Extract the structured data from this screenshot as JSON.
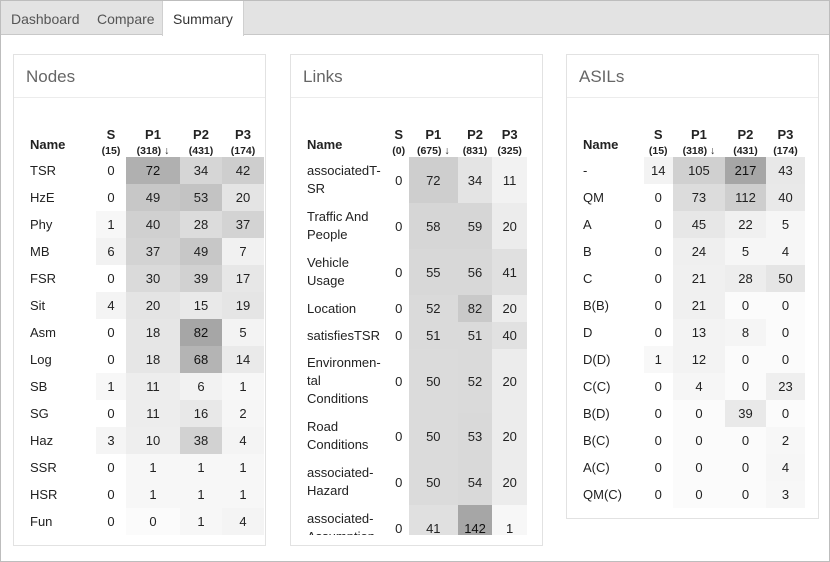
{
  "tabs": [
    {
      "label": "Dashboard",
      "active": false
    },
    {
      "label": "Compare",
      "active": false
    },
    {
      "label": "Summary",
      "active": true
    }
  ],
  "nodes": {
    "title": "Nodes",
    "headers": [
      {
        "h": "Name",
        "s": ""
      },
      {
        "h": "S",
        "s": "(15)"
      },
      {
        "h": "P1",
        "s": "(318) ↓"
      },
      {
        "h": "P2",
        "s": "(431)"
      },
      {
        "h": "P3",
        "s": "(174)"
      }
    ],
    "rows": [
      {
        "name": "TSR",
        "v": [
          0,
          72,
          34,
          42
        ]
      },
      {
        "name": "HzE",
        "v": [
          0,
          49,
          53,
          20
        ]
      },
      {
        "name": "Phy",
        "v": [
          1,
          40,
          28,
          37
        ]
      },
      {
        "name": "MB",
        "v": [
          6,
          37,
          49,
          7
        ]
      },
      {
        "name": "FSR",
        "v": [
          0,
          30,
          39,
          17
        ]
      },
      {
        "name": "Sit",
        "v": [
          4,
          20,
          15,
          19
        ]
      },
      {
        "name": "Asm",
        "v": [
          0,
          18,
          82,
          5
        ]
      },
      {
        "name": "Log",
        "v": [
          0,
          18,
          68,
          14
        ]
      },
      {
        "name": "SB",
        "v": [
          1,
          11,
          6,
          1
        ]
      },
      {
        "name": "SG",
        "v": [
          0,
          11,
          16,
          2
        ]
      },
      {
        "name": "Haz",
        "v": [
          3,
          10,
          38,
          4
        ]
      },
      {
        "name": "SSR",
        "v": [
          0,
          1,
          1,
          1
        ]
      },
      {
        "name": "HSR",
        "v": [
          0,
          1,
          1,
          1
        ]
      },
      {
        "name": "Fun",
        "v": [
          0,
          0,
          1,
          4
        ]
      }
    ]
  },
  "links": {
    "title": "Links",
    "headers": [
      {
        "h": "Name",
        "s": ""
      },
      {
        "h": "S",
        "s": "(0)"
      },
      {
        "h": "P1",
        "s": "(675) ↓"
      },
      {
        "h": "P2",
        "s": "(831)"
      },
      {
        "h": "P3",
        "s": "(325)"
      }
    ],
    "rows": [
      {
        "name": "associatedT-SR",
        "lines": [
          "associatedT-",
          "SR"
        ],
        "v": [
          0,
          72,
          34,
          11
        ]
      },
      {
        "name": "Traffic And People",
        "lines": [
          "Traffic And",
          "People"
        ],
        "v": [
          0,
          58,
          59,
          20
        ]
      },
      {
        "name": "Vehicle Usage",
        "lines": [
          "Vehicle",
          "Usage"
        ],
        "v": [
          0,
          55,
          56,
          41
        ]
      },
      {
        "name": "Location",
        "lines": [
          "Location"
        ],
        "v": [
          0,
          52,
          82,
          20
        ]
      },
      {
        "name": "satisfiesTSR",
        "lines": [
          "satisfiesTSR"
        ],
        "v": [
          0,
          51,
          51,
          40
        ]
      },
      {
        "name": "Environmental Conditions",
        "lines": [
          "Environmen-",
          "tal",
          "Conditions"
        ],
        "v": [
          0,
          50,
          52,
          20
        ]
      },
      {
        "name": "Road Conditions",
        "lines": [
          "Road",
          "Conditions"
        ],
        "v": [
          0,
          50,
          53,
          20
        ]
      },
      {
        "name": "associated-Hazard",
        "lines": [
          "associated-",
          "Hazard"
        ],
        "v": [
          0,
          50,
          54,
          20
        ]
      },
      {
        "name": "associated-Assumption",
        "lines": [
          "associated-",
          "Assumption"
        ],
        "v": [
          0,
          41,
          142,
          1
        ]
      }
    ]
  },
  "asils": {
    "title": "ASILs",
    "headers": [
      {
        "h": "Name",
        "s": ""
      },
      {
        "h": "S",
        "s": "(15)"
      },
      {
        "h": "P1",
        "s": "(318) ↓"
      },
      {
        "h": "P2",
        "s": "(431)"
      },
      {
        "h": "P3",
        "s": "(174)"
      }
    ],
    "rows": [
      {
        "name": "-",
        "v": [
          14,
          105,
          217,
          43
        ]
      },
      {
        "name": "QM",
        "v": [
          0,
          73,
          112,
          40
        ]
      },
      {
        "name": "A",
        "v": [
          0,
          45,
          22,
          5
        ]
      },
      {
        "name": "B",
        "v": [
          0,
          24,
          5,
          4
        ]
      },
      {
        "name": "C",
        "v": [
          0,
          21,
          28,
          50
        ]
      },
      {
        "name": "B(B)",
        "v": [
          0,
          21,
          0,
          0
        ]
      },
      {
        "name": "D",
        "v": [
          0,
          13,
          8,
          0
        ]
      },
      {
        "name": "D(D)",
        "v": [
          1,
          12,
          0,
          0
        ]
      },
      {
        "name": "C(C)",
        "v": [
          0,
          4,
          0,
          23
        ]
      },
      {
        "name": "B(D)",
        "v": [
          0,
          0,
          39,
          0
        ]
      },
      {
        "name": "B(C)",
        "v": [
          0,
          0,
          0,
          2
        ]
      },
      {
        "name": "A(C)",
        "v": [
          0,
          0,
          0,
          4
        ]
      },
      {
        "name": "QM(C)",
        "v": [
          0,
          0,
          0,
          3
        ]
      }
    ]
  }
}
